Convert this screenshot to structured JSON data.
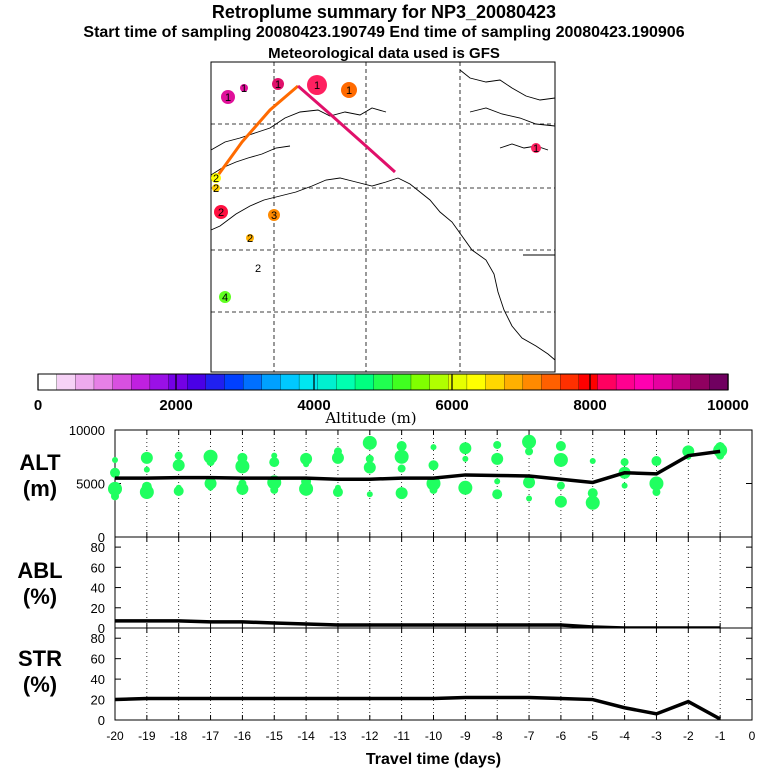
{
  "header": {
    "title": "Retroplume summary for NP3_20080423",
    "times": "Start time of sampling 20080423.190749     End time of sampling 20080423.190906",
    "met": "Meteorological data used is GFS"
  },
  "colorbar": {
    "label": "Altitude (m)",
    "ticks": [
      "0",
      "2000",
      "4000",
      "6000",
      "8000",
      "10000"
    ],
    "colors": [
      "#ffffff",
      "#f6d2f6",
      "#eeaaee",
      "#e680e6",
      "#d850e0",
      "#c020e0",
      "#9a10e6",
      "#7400e6",
      "#4a00e6",
      "#2020f0",
      "#0040ff",
      "#0070ff",
      "#00a0ff",
      "#00c8ff",
      "#00e6f0",
      "#00f0d0",
      "#00ffb0",
      "#00ff80",
      "#20ff50",
      "#40ff20",
      "#80ff00",
      "#b0ff00",
      "#e6ff00",
      "#ffff00",
      "#ffd800",
      "#ffb000",
      "#ff8a00",
      "#ff6000",
      "#ff3000",
      "#ff0000",
      "#ff0060",
      "#ff0090",
      "#ff00b0",
      "#e600a0",
      "#c00080",
      "#900060",
      "#700060"
    ]
  },
  "map": {
    "labels": [
      {
        "text": "1",
        "color": "#e0109a",
        "r": 7
      },
      {
        "text": "1",
        "color": "#e0109a",
        "r": 4
      },
      {
        "text": "1",
        "color": "#e0106a",
        "r": 6
      },
      {
        "text": "1",
        "color": "#ff2060",
        "r": 10
      },
      {
        "text": "1",
        "color": "#ff6a00",
        "r": 8
      },
      {
        "text": "1",
        "color": "#ff2060",
        "r": 5
      },
      {
        "text": "2",
        "color": "#ffff00",
        "r": 5
      },
      {
        "text": "2",
        "color": "#ffd000",
        "r": 4
      },
      {
        "text": "2",
        "color": "#ff1040",
        "r": 7
      },
      {
        "text": "3",
        "color": "#ff8a00",
        "r": 6
      },
      {
        "text": "2",
        "color": "#ffb000",
        "r": 4
      },
      {
        "text": "2",
        "color": "#ffffff",
        "r": 0
      },
      {
        "text": "4",
        "color": "#60ff20",
        "r": 6
      }
    ]
  },
  "chart_data": [
    {
      "type": "line",
      "name": "ALT",
      "ylabel": "ALT (m)",
      "ylim": [
        0,
        10000
      ],
      "yticks": [
        "0",
        "5000",
        "10000"
      ],
      "x": [
        -20,
        -19,
        -18,
        -17,
        -16,
        -15,
        -14,
        -13,
        -12,
        -11,
        -10,
        -9,
        -8,
        -7,
        -6,
        -5,
        -4,
        -3,
        -2,
        -1
      ],
      "values": [
        5500,
        5500,
        5550,
        5550,
        5500,
        5500,
        5500,
        5400,
        5400,
        5500,
        5500,
        5800,
        5750,
        5700,
        5400,
        5100,
        6000,
        5900,
        7600,
        8000
      ],
      "points": [
        [
          -20,
          7200
        ],
        [
          -20,
          6000
        ],
        [
          -20,
          4500
        ],
        [
          -20,
          3800
        ],
        [
          -19,
          7400
        ],
        [
          -19,
          6300
        ],
        [
          -19,
          4700
        ],
        [
          -19,
          4200
        ],
        [
          -18,
          7600
        ],
        [
          -18,
          6700
        ],
        [
          -18,
          4600
        ],
        [
          -18,
          4300
        ],
        [
          -17,
          7500
        ],
        [
          -17,
          7000
        ],
        [
          -17,
          5000
        ],
        [
          -17,
          4600
        ],
        [
          -16,
          7400
        ],
        [
          -16,
          6600
        ],
        [
          -16,
          5000
        ],
        [
          -16,
          4500
        ],
        [
          -15,
          7600
        ],
        [
          -15,
          7000
        ],
        [
          -15,
          5100
        ],
        [
          -15,
          4400
        ],
        [
          -14,
          7300
        ],
        [
          -14,
          6800
        ],
        [
          -14,
          5200
        ],
        [
          -14,
          4500
        ],
        [
          -13,
          8000
        ],
        [
          -13,
          7400
        ],
        [
          -13,
          4600
        ],
        [
          -13,
          4200
        ],
        [
          -12,
          8800
        ],
        [
          -12,
          7300
        ],
        [
          -12,
          6500
        ],
        [
          -12,
          4000
        ],
        [
          -11,
          8500
        ],
        [
          -11,
          7500
        ],
        [
          -11,
          6400
        ],
        [
          -11,
          4100
        ],
        [
          -10,
          8400
        ],
        [
          -10,
          6700
        ],
        [
          -10,
          5000
        ],
        [
          -10,
          4400
        ],
        [
          -9,
          8300
        ],
        [
          -9,
          7300
        ],
        [
          -9,
          4700
        ],
        [
          -9,
          4600
        ],
        [
          -8,
          8600
        ],
        [
          -8,
          7300
        ],
        [
          -8,
          5200
        ],
        [
          -8,
          4000
        ],
        [
          -7,
          8900
        ],
        [
          -7,
          8000
        ],
        [
          -7,
          5100
        ],
        [
          -7,
          3600
        ],
        [
          -6,
          8500
        ],
        [
          -6,
          7200
        ],
        [
          -6,
          4800
        ],
        [
          -6,
          3300
        ],
        [
          -5,
          7100
        ],
        [
          -5,
          4100
        ],
        [
          -5,
          3200
        ],
        [
          -4,
          7000
        ],
        [
          -4,
          6000
        ],
        [
          -4,
          4800
        ],
        [
          -3,
          7100
        ],
        [
          -3,
          5000
        ],
        [
          -3,
          4200
        ],
        [
          -2,
          8000
        ],
        [
          -2,
          7500
        ],
        [
          -1,
          8400
        ],
        [
          -1,
          8100
        ],
        [
          -1,
          7600
        ]
      ]
    },
    {
      "type": "line",
      "name": "ABL",
      "ylabel": "ABL (%)",
      "ylim": [
        0,
        90
      ],
      "yticks": [
        "0",
        "20",
        "40",
        "60",
        "80"
      ],
      "x": [
        -20,
        -19,
        -18,
        -17,
        -16,
        -15,
        -14,
        -13,
        -12,
        -11,
        -10,
        -9,
        -8,
        -7,
        -6,
        -5,
        -4,
        -3,
        -2,
        -1
      ],
      "values": [
        7,
        7,
        7,
        6,
        6,
        5,
        4,
        3,
        3,
        3,
        3,
        3,
        3,
        3,
        3,
        1,
        0,
        0,
        0,
        0
      ]
    },
    {
      "type": "line",
      "name": "STR",
      "ylabel": "STR (%)",
      "ylim": [
        0,
        90
      ],
      "yticks": [
        "0",
        "20",
        "40",
        "60",
        "80"
      ],
      "x": [
        -20,
        -19,
        -18,
        -17,
        -16,
        -15,
        -14,
        -13,
        -12,
        -11,
        -10,
        -9,
        -8,
        -7,
        -6,
        -5,
        -4,
        -3,
        -2,
        -1
      ],
      "values": [
        20,
        21,
        21,
        21,
        21,
        21,
        21,
        21,
        21,
        21,
        21,
        22,
        22,
        22,
        21,
        20,
        12,
        6,
        18,
        1
      ],
      "xlabel": "Travel time (days)",
      "xticks": [
        "-20",
        "-19",
        "-18",
        "-17",
        "-16",
        "-15",
        "-14",
        "-13",
        "-12",
        "-11",
        "-10",
        "-9",
        "-8",
        "-7",
        "-6",
        "-5",
        "-4",
        "-3",
        "-2",
        "-1",
        "0"
      ]
    }
  ],
  "panels": {
    "alt_label": [
      "ALT",
      "(m)"
    ],
    "abl_label": [
      "ABL",
      "(%)"
    ],
    "str_label": [
      "STR",
      "(%)"
    ]
  }
}
